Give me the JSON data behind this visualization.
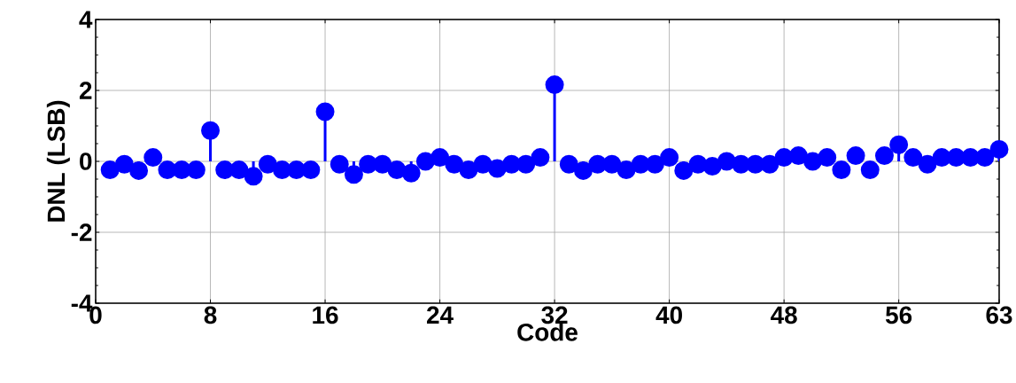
{
  "chart_data": {
    "type": "lollipop",
    "xlabel": "Code",
    "ylabel": "DNL (LSB)",
    "x": [
      1,
      2,
      3,
      4,
      5,
      6,
      7,
      8,
      9,
      10,
      11,
      12,
      13,
      14,
      15,
      16,
      17,
      18,
      19,
      20,
      21,
      22,
      23,
      24,
      25,
      26,
      27,
      28,
      29,
      30,
      31,
      32,
      33,
      34,
      35,
      36,
      37,
      38,
      39,
      40,
      41,
      42,
      43,
      44,
      45,
      46,
      47,
      48,
      49,
      50,
      51,
      52,
      53,
      54,
      55,
      56,
      57,
      58,
      59,
      60,
      61,
      62,
      63
    ],
    "series": [
      {
        "color": "#0000ff",
        "values": [
          -0.24,
          -0.08,
          -0.26,
          0.11,
          -0.24,
          -0.24,
          -0.24,
          0.87,
          -0.24,
          -0.24,
          -0.42,
          -0.08,
          -0.24,
          -0.24,
          -0.24,
          1.4,
          -0.08,
          -0.37,
          -0.08,
          -0.08,
          -0.24,
          -0.33,
          0,
          0.11,
          -0.08,
          -0.24,
          -0.08,
          -0.2,
          -0.08,
          -0.08,
          0.11,
          2.16,
          -0.08,
          -0.26,
          -0.08,
          -0.08,
          -0.24,
          -0.08,
          -0.08,
          0.11,
          -0.26,
          -0.08,
          -0.14,
          0,
          -0.08,
          -0.08,
          -0.08,
          0.11,
          0.16,
          0,
          0.11,
          -0.24,
          0.16,
          -0.24,
          0.16,
          0.47,
          0.11,
          -0.08,
          0.11,
          0.11,
          0.11,
          0.11,
          0.34
        ]
      }
    ],
    "xlim": [
      0,
      63
    ],
    "ylim": [
      -4,
      4
    ],
    "xticks": [
      0,
      8,
      16,
      24,
      32,
      40,
      48,
      56,
      63
    ],
    "yticks": [
      -4,
      -2,
      0,
      2,
      4
    ],
    "grid": true,
    "marker": "circle"
  }
}
